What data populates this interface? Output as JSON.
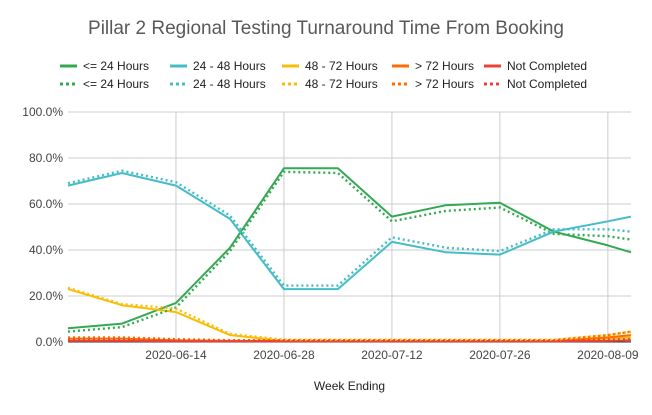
{
  "chart_data": {
    "type": "line",
    "title": "Pillar 2 Regional Testing Turnaround Time From Booking",
    "xlabel": "Week Ending",
    "ylabel": "",
    "ylim": [
      0,
      100
    ],
    "y_ticks": [
      "0.0%",
      "20.0%",
      "40.0%",
      "60.0%",
      "80.0%",
      "100.0%"
    ],
    "x_ticks": [
      "2020-06-14",
      "2020-06-28",
      "2020-07-12",
      "2020-07-26",
      "2020-08-09"
    ],
    "x": [
      "2020-05-31",
      "2020-06-07",
      "2020-06-14",
      "2020-06-21",
      "2020-06-28",
      "2020-07-05",
      "2020-07-12",
      "2020-07-19",
      "2020-07-26",
      "2020-08-02",
      "2020-08-09",
      "2020-08-12"
    ],
    "grid": true,
    "legend_position": "top",
    "series": [
      {
        "name": "<= 24 Hours",
        "style": "solid",
        "color": "#34a853",
        "values": [
          6,
          8,
          17,
          41,
          75.5,
          75.5,
          54.5,
          59.5,
          60.5,
          48,
          42,
          39
        ]
      },
      {
        "name": "24 - 48 Hours",
        "style": "solid",
        "color": "#46bdc6",
        "values": [
          68,
          73.5,
          68,
          53.5,
          23,
          23,
          43.5,
          39,
          38,
          48,
          52.5,
          54.5
        ]
      },
      {
        "name": "48 - 72 Hours",
        "style": "solid",
        "color": "#fbbc04",
        "values": [
          23,
          16,
          13,
          3,
          0.5,
          0.5,
          0.5,
          0.5,
          0.5,
          0.5,
          1.5,
          2
        ]
      },
      {
        "name": "> 72 Hours",
        "style": "solid",
        "color": "#ff6d01",
        "values": [
          1.5,
          1.5,
          0.8,
          0.5,
          0.5,
          0.5,
          0.5,
          0.5,
          0.5,
          0.5,
          2,
          3
        ]
      },
      {
        "name": "Not Completed",
        "style": "solid",
        "color": "#ea4335",
        "values": [
          0.5,
          0.5,
          0.3,
          0.3,
          0.3,
          0.3,
          0.3,
          0.3,
          0.3,
          0.3,
          0.5,
          0.8
        ]
      },
      {
        "name": "<= 24 Hours",
        "style": "dotted",
        "color": "#34a853",
        "values": [
          4.5,
          6.5,
          15,
          39.5,
          74,
          73.5,
          52.5,
          57,
          58.5,
          47,
          46,
          44.5
        ]
      },
      {
        "name": "24 - 48 Hours",
        "style": "dotted",
        "color": "#46bdc6",
        "values": [
          69,
          74.5,
          69.5,
          55,
          24.5,
          24.5,
          45.5,
          41,
          39.5,
          49,
          49,
          48
        ]
      },
      {
        "name": "48 - 72 Hours",
        "style": "dotted",
        "color": "#fbbc04",
        "values": [
          23.5,
          16.5,
          14.5,
          3.5,
          1,
          1,
          1,
          1,
          1,
          1,
          3,
          4.5
        ]
      },
      {
        "name": "> 72 Hours",
        "style": "dotted",
        "color": "#ff6d01",
        "values": [
          2,
          2,
          1.2,
          0.8,
          0.8,
          0.8,
          0.8,
          0.8,
          0.8,
          0.8,
          3,
          4.5
        ]
      },
      {
        "name": "Not Completed",
        "style": "dotted",
        "color": "#ea4335",
        "values": [
          1,
          1,
          0.6,
          0.5,
          0.5,
          0.5,
          0.5,
          0.5,
          0.5,
          0.5,
          1,
          1.2
        ]
      }
    ]
  }
}
